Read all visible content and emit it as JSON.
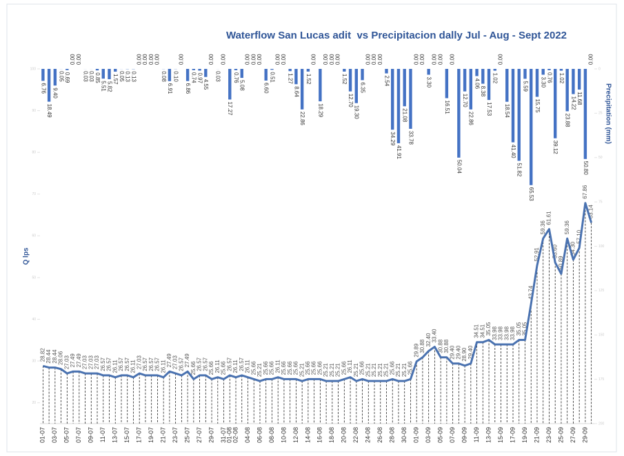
{
  "chart_data": {
    "type": "combo",
    "title": "Waterflow San Lucas adit  vs Precipitacion dally Jul - Aug - Sept 2022",
    "y_label": "Q lps",
    "y2_label": "Precipitation (mm)",
    "categories": [
      "01-07",
      null,
      "03-07",
      null,
      "05-07",
      null,
      "07-07",
      null,
      "09-07",
      null,
      "11-07",
      null,
      "13-07",
      null,
      "15-07",
      null,
      "17-07",
      null,
      "19-07",
      null,
      "21-07",
      null,
      "23-07",
      null,
      "25-07",
      null,
      "27-07",
      null,
      "29-07",
      null,
      "31-07",
      "01-08",
      "02-08",
      null,
      "04-08",
      null,
      "06-08",
      null,
      "08-08",
      null,
      "10-08",
      null,
      "12-08",
      null,
      "14-08",
      null,
      "16-08",
      null,
      "18-08",
      null,
      "20-08",
      null,
      "22-08",
      null,
      "24-08",
      null,
      "26-08",
      null,
      "28-08",
      null,
      "30-08",
      null,
      "01-09",
      null,
      "03-09",
      null,
      "05-09",
      null,
      "07-09",
      null,
      "09-09",
      null,
      "11-09",
      null,
      "13-09",
      null,
      "15-09",
      null,
      "17-09",
      null,
      "19-09",
      null,
      "21-09",
      null,
      "23-09",
      null,
      "25-09",
      null,
      "27-09",
      null,
      "29-09",
      null
    ],
    "ylim": [
      15,
      100
    ],
    "yticks": [
      20,
      30,
      40,
      50,
      60,
      70,
      80,
      90,
      100
    ],
    "y2lim": [
      0,
      200
    ],
    "y2ticks": [
      0,
      25,
      50,
      75,
      100,
      125,
      150,
      175,
      200
    ],
    "y2_inverted": true,
    "grid": false,
    "series": [
      {
        "name": "Precipitation (mm)",
        "type": "bar",
        "axis": "y2",
        "color": "#4472c4",
        "values": [
          6.76,
          18.49,
          9.4,
          0.05,
          0.69,
          0,
          0,
          0.03,
          0.03,
          0.85,
          5.51,
          5.82,
          1.57,
          0.05,
          0.13,
          0.13,
          0,
          0,
          0,
          0,
          0.08,
          6.91,
          0.1,
          0,
          6.86,
          0.74,
          0.97,
          4.55,
          0,
          0.03,
          0,
          17.27,
          0.76,
          5.08,
          0,
          0,
          0,
          6.6,
          0.51,
          0,
          0,
          1.27,
          8.64,
          22.86,
          1.52,
          0,
          18.29,
          0,
          0,
          0,
          1.52,
          12.7,
          19.3,
          6.35,
          0,
          0,
          0,
          2.54,
          34.29,
          41.91,
          21.08,
          33.78,
          0,
          0,
          3.3,
          0,
          0,
          16.51,
          0,
          50.04,
          12.7,
          22.86,
          4.06,
          8.38,
          17.53,
          1.02,
          0,
          18.54,
          41.4,
          51.82,
          5.59,
          65.53,
          15.75,
          3.3,
          0.76,
          39.12,
          1.02,
          23.88,
          14.22,
          11.68,
          50.8,
          0
        ],
        "value_labels": [
          "6.76",
          "18.49",
          "9.40",
          "0.05",
          "0.69",
          "0.00",
          "0.00",
          "0.03",
          "0.03",
          "0.85",
          "5.51",
          "5.82",
          "1.57",
          "0.05",
          "0.13",
          "0.13",
          "0.00",
          "0.00",
          "0.00",
          "0.00",
          "0.08",
          "6.91",
          "0.10",
          "0.00",
          "6.86",
          "0.74",
          "0.97",
          "4.55",
          "0.00",
          "0.03",
          "0.00",
          "17.27",
          "0.76",
          "5.08",
          "0.00",
          "0.00",
          "0.00",
          "6.60",
          "0.51",
          "0.00",
          "0.00",
          "1.27",
          "8.64",
          "22.86",
          "1.52",
          "0.00",
          "18.29",
          "0.00",
          "0.00",
          "0.00",
          "1.52",
          "12.70",
          "19.30",
          "6.35",
          "0.00",
          "0.00",
          "0.00",
          "2.54",
          "34.29",
          "41.91",
          "21.08",
          "33.78",
          "0.00",
          "0.00",
          "3.30",
          "0.00",
          "0.00",
          "16.51",
          "0.00",
          "50.04",
          "12.70",
          "22.86",
          "4.06",
          "8.38",
          "17.53",
          "1.02",
          "0.00",
          "18.54",
          "41.40",
          "51.82",
          "5.59",
          "65.53",
          "15.75",
          "3.30",
          "0.76",
          "39.12",
          "1.02",
          "23.88",
          "14.22",
          "11.68",
          "50.80",
          "0.00"
        ]
      },
      {
        "name": "Q lps",
        "type": "line",
        "axis": "y",
        "color": "#4a72b0",
        "values": [
          28.82,
          28.44,
          28.44,
          28.06,
          27.03,
          27.49,
          27.49,
          27.03,
          27.03,
          27.03,
          26.57,
          26.57,
          26.11,
          26.57,
          26.57,
          26.11,
          27.03,
          26.57,
          26.57,
          26.57,
          26.11,
          27.49,
          27.03,
          26.57,
          27.49,
          25.66,
          26.57,
          26.57,
          25.66,
          26.11,
          25.66,
          26.57,
          26.11,
          26.57,
          26.11,
          25.66,
          25.21,
          25.66,
          25.66,
          26.11,
          25.66,
          25.66,
          25.66,
          25.21,
          25.66,
          25.66,
          25.66,
          25.21,
          25.21,
          25.21,
          25.66,
          26.11,
          25.21,
          25.66,
          25.21,
          25.21,
          25.21,
          25.21,
          25.66,
          25.21,
          25.21,
          25.66,
          29.89,
          30.88,
          32.4,
          33.4,
          30.88,
          30.88,
          29.4,
          29.4,
          28.9,
          29.4,
          34.51,
          34.51,
          35.05,
          33.98,
          33.98,
          33.98,
          33.98,
          35.05,
          35.05,
          43.74,
          52.91,
          59.36,
          61.61,
          53.6,
          50.89,
          59.36,
          54.3,
          57.1,
          67.86,
          63.14
        ],
        "value_labels": [
          "28.82",
          "28.44",
          "28.44",
          "28.06",
          "27.03",
          "27.49",
          "27.49",
          "27.03",
          "27.03",
          "27.03",
          "26.57",
          "26.57",
          "26.11",
          "26.57",
          "26.57",
          "26.11",
          "27.03",
          "26.57",
          "26.57",
          "26.57",
          "26.11",
          "27.49",
          "27.03",
          "26.57",
          "27.49",
          "25.66",
          "26.57",
          "26.57",
          "25.66",
          "26.11",
          "25.66",
          "26.57",
          "26.11",
          "26.57",
          "26.11",
          "25.66",
          "25.21",
          "25.66",
          "25.66",
          "26.11",
          "25.66",
          "25.66",
          "25.66",
          "25.21",
          "25.66",
          "25.66",
          "25.66",
          "25.21",
          "25.21",
          "25.21",
          "25.66",
          "26.11",
          "25.21",
          "25.66",
          "25.21",
          "25.21",
          "25.21",
          "25.21",
          "25.66",
          "25.21",
          "25.21",
          "25.66",
          "29.89",
          "30.88",
          "32.40",
          "33.40",
          "30.88",
          "30.88",
          "29.40",
          "29.40",
          "28.90",
          "29.40",
          "34.51",
          "34.51",
          "35.05",
          "33.98",
          "33.98",
          "33.98",
          "33.98",
          "35.05",
          "35.05",
          "43.74",
          "52.91",
          "59.36",
          "61.61",
          "53.60",
          "50.89",
          "59.36",
          "54.30",
          "57.10",
          "67.86",
          "63.14"
        ]
      }
    ]
  }
}
